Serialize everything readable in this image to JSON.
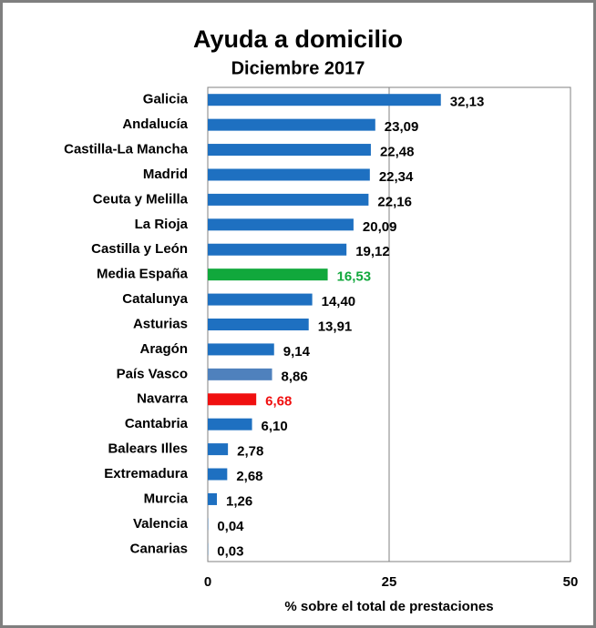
{
  "chart_data": {
    "type": "hbar",
    "title": "Ayuda a domicilio",
    "subtitle": "Diciembre 2017",
    "x_label": "% sobre el total de prestaciones",
    "categories": [
      "Galicia",
      "Andalucía",
      "Castilla-La Mancha",
      "Madrid",
      "Ceuta y Melilla",
      "La Rioja",
      "Castilla y León",
      "Media España",
      "Catalunya",
      "Asturias",
      "Aragón",
      "País Vasco",
      "Navarra",
      "Cantabria",
      "Balears Illes",
      "Extremadura",
      "Murcia",
      "Valencia",
      "Canarias"
    ],
    "values": [
      32.13,
      23.09,
      22.48,
      22.34,
      22.16,
      20.09,
      19.12,
      16.53,
      14.4,
      13.91,
      9.14,
      8.86,
      6.68,
      6.1,
      2.78,
      2.68,
      1.26,
      0.04,
      0.03
    ],
    "value_labels": [
      "32,13",
      "23,09",
      "22,48",
      "22,34",
      "22,16",
      "20,09",
      "19,12",
      "16,53",
      "14,40",
      "13,91",
      "9,14",
      "8,86",
      "6,68",
      "6,10",
      "2,78",
      "2,68",
      "1,26",
      "0,04",
      "0,03"
    ],
    "colors": [
      "#1e70c1",
      "#1e70c1",
      "#1e70c1",
      "#1e70c1",
      "#1e70c1",
      "#1e70c1",
      "#1e70c1",
      "#11a83c",
      "#1e70c1",
      "#1e70c1",
      "#1e70c1",
      "#4f81bd",
      "#f01010",
      "#1e70c1",
      "#1e70c1",
      "#1e70c1",
      "#1e70c1",
      "#1e70c1",
      "#1e70c1"
    ],
    "label_colors": [
      "#000000",
      "#000000",
      "#000000",
      "#000000",
      "#000000",
      "#000000",
      "#000000",
      "#11a83c",
      "#000000",
      "#000000",
      "#000000",
      "#000000",
      "#f01010",
      "#000000",
      "#000000",
      "#000000",
      "#000000",
      "#000000",
      "#000000"
    ],
    "xlim": [
      0,
      50
    ],
    "xticks": [
      0,
      25,
      50
    ],
    "grid": true
  }
}
